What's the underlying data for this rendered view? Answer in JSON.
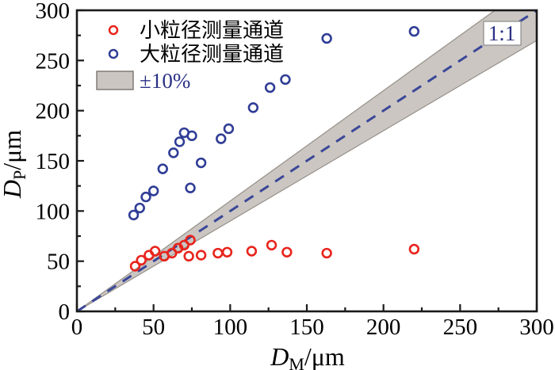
{
  "chart_data": {
    "type": "scatter",
    "title": "",
    "xlabel": "D_M/μm",
    "ylabel": "D_P/μm",
    "xlabel_parts": {
      "base": "D",
      "sub": "M",
      "unit": "/μm"
    },
    "ylabel_parts": {
      "base": "D",
      "sub": "P",
      "unit": "/μm"
    },
    "xlim": [
      0,
      300
    ],
    "ylim": [
      0,
      300
    ],
    "x_major_ticks": [
      0,
      50,
      100,
      150,
      200,
      250,
      300
    ],
    "y_major_ticks": [
      0,
      50,
      100,
      150,
      200,
      250,
      300
    ],
    "minor_tick_step": 25,
    "grid": false,
    "legend_position": "top-left-inside",
    "series": [
      {
        "name": "小粒径测量通道",
        "marker": "open-circle",
        "color": "#e8241c",
        "points": [
          [
            38,
            45
          ],
          [
            42,
            51
          ],
          [
            47,
            56
          ],
          [
            51,
            60
          ],
          [
            57,
            55
          ],
          [
            62,
            58
          ],
          [
            66,
            63
          ],
          [
            70,
            66
          ],
          [
            74,
            71
          ],
          [
            73,
            55
          ],
          [
            81,
            56
          ],
          [
            92,
            58
          ],
          [
            98,
            59
          ],
          [
            114,
            60
          ],
          [
            127,
            66
          ],
          [
            137,
            59
          ],
          [
            163,
            58
          ],
          [
            220,
            62
          ]
        ]
      },
      {
        "name": "大粒径测量通道",
        "marker": "open-circle",
        "color": "#303d96",
        "points": [
          [
            37,
            96
          ],
          [
            41,
            103
          ],
          [
            45,
            114
          ],
          [
            50,
            120
          ],
          [
            56,
            142
          ],
          [
            63,
            158
          ],
          [
            67,
            169
          ],
          [
            70,
            178
          ],
          [
            75,
            175
          ],
          [
            74,
            123
          ],
          [
            81,
            148
          ],
          [
            94,
            172
          ],
          [
            99,
            182
          ],
          [
            115,
            203
          ],
          [
            126,
            223
          ],
          [
            136,
            231
          ],
          [
            163,
            272
          ],
          [
            220,
            279
          ]
        ]
      }
    ],
    "reference_line": {
      "label": "1:1",
      "style": "dashed",
      "color": "#3a4798",
      "from": [
        0,
        0
      ],
      "to": [
        300,
        300
      ]
    },
    "tolerance_band": {
      "label": "±10%",
      "pct": 10,
      "fill": "#cbc6c2",
      "edge": "#969089"
    }
  }
}
